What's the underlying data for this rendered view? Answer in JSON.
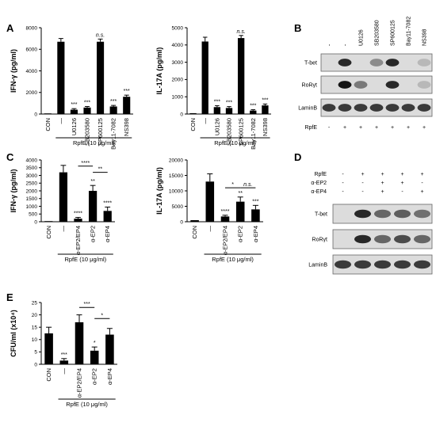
{
  "figure": {
    "panel_labels": [
      "A",
      "B",
      "C",
      "D",
      "E"
    ]
  },
  "blot_B": {
    "lane_headers": [
      "-",
      "-",
      "U0126",
      "SB203580",
      "SP600125",
      "Bay11-7082",
      "NS398"
    ],
    "rows": [
      "T-bet",
      "RoRγt",
      "LaminB"
    ],
    "treatment_label": "RpfE",
    "treatment_marks": [
      "-",
      "+",
      "+",
      "+",
      "+",
      "+",
      "+"
    ],
    "bands": {
      "T-bet": [
        0.05,
        0.9,
        0.05,
        0.35,
        0.9,
        0.05,
        0.1
      ],
      "RoRγt": [
        0.05,
        1.0,
        0.45,
        0.05,
        0.9,
        0.05,
        0.1
      ],
      "LaminB": [
        0.8,
        0.8,
        0.8,
        0.8,
        0.8,
        0.8,
        0.8
      ]
    }
  },
  "blot_D": {
    "row_headers": [
      "RpfE",
      "α-EP2",
      "α-EP4"
    ],
    "marks": [
      [
        "-",
        "+",
        "+",
        "+",
        "+"
      ],
      [
        "-",
        "-",
        "+",
        "+",
        "-"
      ],
      [
        "-",
        "-",
        "+",
        "-",
        "+"
      ]
    ],
    "rows": [
      "T-bet",
      "RoRγt",
      "LaminB"
    ],
    "bands": {
      "T-bet": [
        0.05,
        0.9,
        0.55,
        0.6,
        0.5
      ],
      "RoRγt": [
        0.05,
        0.9,
        0.55,
        0.7,
        0.55
      ],
      "LaminB": [
        0.8,
        0.8,
        0.8,
        0.8,
        0.8
      ]
    }
  },
  "chart_data": [
    {
      "panel": "A",
      "type": "bar",
      "ylabel": "IFN-γ (pg/ml)",
      "xlabel": "RpfE (10 μg/ml)",
      "categories": [
        "CON",
        "—",
        "U0126",
        "SB203580",
        "SP600125",
        "Bay11-7082",
        "NS398"
      ],
      "values": [
        0,
        6700,
        400,
        600,
        6700,
        700,
        1600
      ],
      "errors": [
        0,
        300,
        100,
        100,
        250,
        100,
        150
      ],
      "ylim": [
        0,
        8000
      ],
      "yticks": [
        "0",
        "2000",
        "4000",
        "6000",
        "8000"
      ],
      "annotations": [
        "",
        "",
        "***",
        "***",
        "n.s.",
        "***",
        "***"
      ]
    },
    {
      "panel": "A",
      "type": "bar",
      "ylabel": "IL-17A (pg/ml)",
      "xlabel": "RpfE (10 μg/ml)",
      "categories": [
        "CON",
        "—",
        "U0126",
        "SB203580",
        "SP600125",
        "Bay11-7082",
        "NS398"
      ],
      "values": [
        50,
        4200,
        400,
        350,
        4400,
        200,
        500
      ],
      "errors": [
        0,
        250,
        80,
        80,
        150,
        50,
        80
      ],
      "ylim": [
        0,
        5000
      ],
      "yticks": [
        "0",
        "1000",
        "2000",
        "3000",
        "4000",
        "5000"
      ],
      "annotations": [
        "",
        "",
        "***",
        "***",
        "n.s.",
        "***",
        "***"
      ]
    },
    {
      "panel": "C",
      "type": "bar",
      "ylabel": "IFN-γ (pg/ml)",
      "xlabel": "RpfE (10 μg/ml)",
      "categories": [
        "CON",
        "—",
        "α-EP2/EP4",
        "α-EP2",
        "α-EP4"
      ],
      "values": [
        0,
        3200,
        200,
        2000,
        700
      ],
      "errors": [
        0,
        450,
        80,
        350,
        250
      ],
      "ylim": [
        0,
        4000
      ],
      "yticks": [
        "0",
        "500",
        "1000",
        "1500",
        "2000",
        "2500",
        "3000",
        "3500",
        "4000"
      ],
      "annotations": [
        "",
        "",
        "****",
        "**",
        "****"
      ],
      "brackets": [
        {
          "from": 2,
          "to": 3,
          "label": "****"
        },
        {
          "from": 3,
          "to": 4,
          "label": "**"
        }
      ]
    },
    {
      "panel": "C",
      "type": "bar",
      "ylabel": "IL-17A (pg/ml)",
      "xlabel": "RpfE (10 μg/ml)",
      "categories": [
        "CON",
        "—",
        "α-EP2/EP4",
        "α-EP2",
        "α-EP4"
      ],
      "values": [
        500,
        13000,
        1700,
        6500,
        4000
      ],
      "errors": [
        0,
        2500,
        400,
        1500,
        1300
      ],
      "ylim": [
        0,
        20000
      ],
      "yticks": [
        "0",
        "5000",
        "10000",
        "15000",
        "20000"
      ],
      "annotations": [
        "",
        "",
        "****",
        "**",
        "***"
      ],
      "brackets": [
        {
          "from": 2,
          "to": 3,
          "label": "*"
        },
        {
          "from": 3,
          "to": 4,
          "label": "n.s."
        }
      ]
    },
    {
      "panel": "E",
      "type": "bar",
      "ylabel": "CFU/ml (x10⁴)",
      "xlabel": "RpfE (10 μg/ml)",
      "categories": [
        "CON",
        "—",
        "α-EP2/EP4",
        "α-EP2",
        "α-EP4"
      ],
      "values": [
        12.5,
        1.5,
        17,
        5.5,
        12
      ],
      "errors": [
        2.5,
        0.8,
        3,
        1.5,
        2.5
      ],
      "ylim": [
        0,
        25
      ],
      "yticks": [
        "0",
        "5",
        "10",
        "15",
        "20",
        "25"
      ],
      "annotations": [
        "",
        "***",
        "",
        "*",
        ""
      ],
      "brackets": [
        {
          "from": 2,
          "to": 3,
          "label": "***"
        },
        {
          "from": 3,
          "to": 4,
          "label": "*"
        }
      ]
    }
  ]
}
